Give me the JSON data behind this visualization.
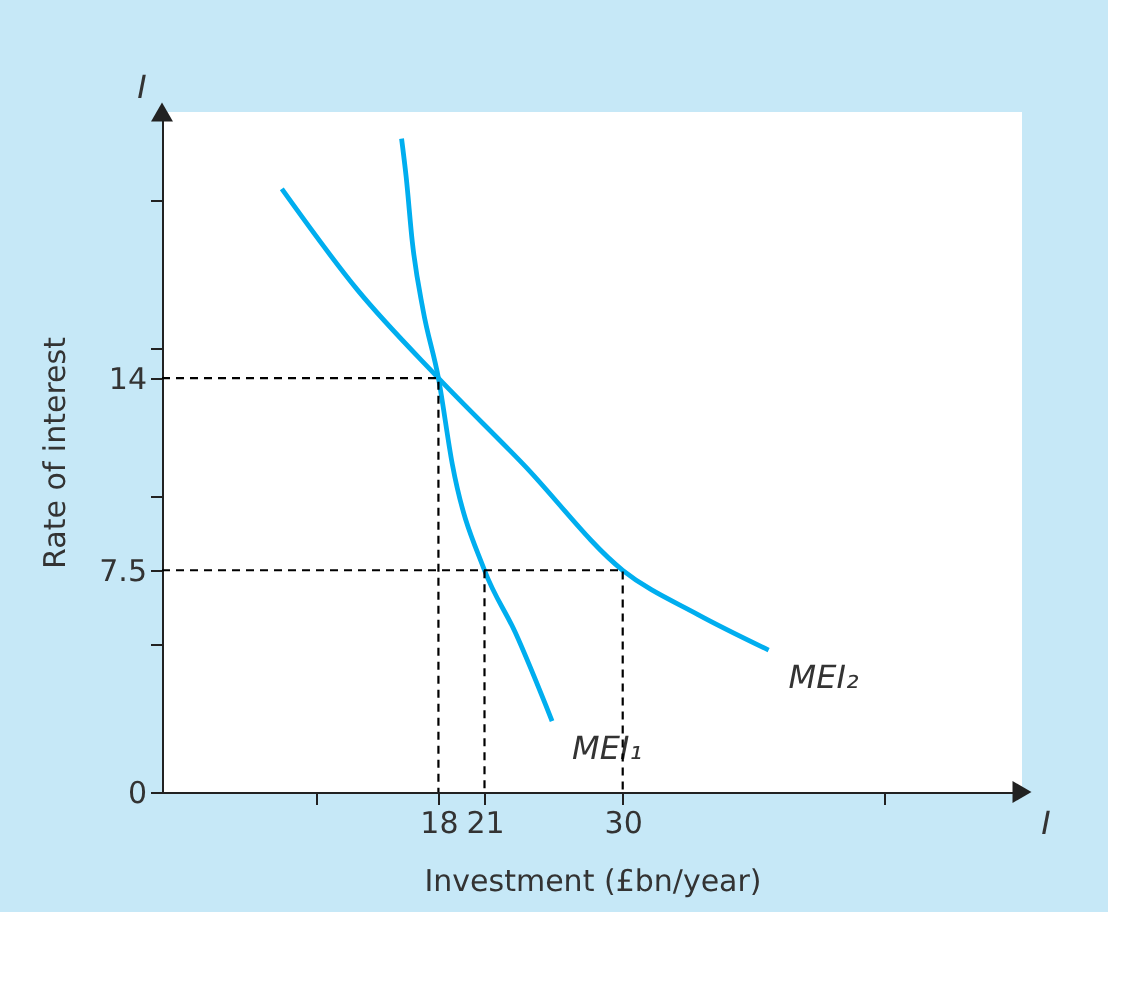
{
  "chart_data": {
    "type": "line",
    "xlabel": "Investment (£bn/year)",
    "ylabel": "Rate of interest",
    "xlim": [
      0,
      56
    ],
    "ylim": [
      0,
      23
    ],
    "xticks": [
      {
        "value": 10,
        "label": null
      },
      18,
      21,
      30,
      {
        "value": 47,
        "label": null
      }
    ],
    "yticks": [
      0,
      {
        "value": 5,
        "label": null
      },
      7.5,
      {
        "value": 10,
        "label": null
      },
      14,
      {
        "value": 15,
        "label": null
      },
      {
        "value": 20,
        "label": null
      }
    ],
    "grid": false,
    "marker": "none",
    "annotations": [
      "I",
      "I"
    ],
    "series": [
      {
        "name": "MEI₁",
        "color": "#00aeef",
        "line_style": "solid",
        "x": [
          15.6,
          15.9,
          16.3,
          17.0,
          18,
          18.9,
          21,
          23,
          25.4
        ],
        "values": [
          22.1,
          20.8,
          18.6,
          16.3,
          14,
          11.1,
          7.5,
          5.4,
          2.4
        ]
      },
      {
        "name": "MEI₂",
        "color": "#00aeef",
        "line_style": "solid",
        "x": [
          7.8,
          12.7,
          18,
          23.5,
          30,
          34.9,
          39.5
        ],
        "values": [
          20.4,
          17.0,
          14,
          11.1,
          7.5,
          6.0,
          4.8
        ]
      },
      {
        "type": "line",
        "color": "#000000",
        "line_style": "dashed",
        "x": [
          0,
          18,
          18
        ],
        "values": [
          14,
          14,
          0
        ]
      },
      {
        "type": "line",
        "color": "#000000",
        "line_style": "dashed",
        "x": [
          0,
          30,
          30
        ],
        "values": [
          7.5,
          7.5,
          0
        ]
      },
      {
        "type": "line",
        "color": "#000000",
        "line_style": "dashed",
        "x": [
          21,
          21
        ],
        "values": [
          7.5,
          0
        ]
      }
    ]
  }
}
